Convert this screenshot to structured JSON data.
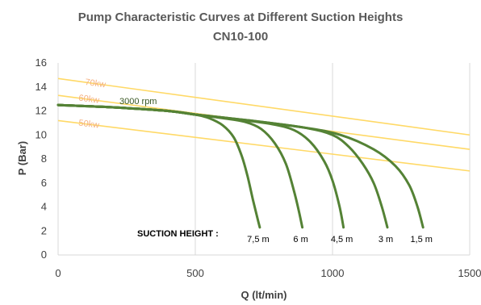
{
  "chart_data": {
    "type": "line",
    "title": "Pump Characteristic Curves at Different Suction Heights",
    "subtitle": "CN10-100",
    "xlabel": "Q (lt/min)",
    "ylabel": "P (Bar)",
    "xlim": [
      0,
      1500
    ],
    "ylim": [
      0,
      16
    ],
    "xticks": [
      0,
      500,
      1000,
      1500
    ],
    "yticks": [
      0,
      2,
      4,
      6,
      8,
      10,
      12,
      14,
      16
    ],
    "grid": "vertical",
    "colors": {
      "pump": "#548235",
      "power": "#FFD966",
      "grid": "#D9D9D9",
      "text": "#404040"
    },
    "speed_label": "3000 rpm",
    "suction_label": "SUCTION HEIGHT :",
    "power_lines": [
      {
        "name": "70kw",
        "x": [
          0,
          1500
        ],
        "y": [
          14.7,
          10.0
        ]
      },
      {
        "name": "60kw",
        "x": [
          0,
          1500
        ],
        "y": [
          13.3,
          8.8
        ]
      },
      {
        "name": "50kw",
        "x": [
          0,
          1500
        ],
        "y": [
          11.2,
          7.0
        ]
      }
    ],
    "series": [
      {
        "name": "7,5 m",
        "x": [
          0,
          200,
          400,
          500,
          550,
          600,
          640,
          670,
          690,
          710,
          725,
          735
        ],
        "y": [
          12.5,
          12.3,
          12.0,
          11.7,
          11.4,
          10.8,
          9.8,
          8.2,
          6.6,
          4.6,
          3.2,
          2.3
        ]
      },
      {
        "name": "6 m",
        "x": [
          0,
          200,
          400,
          500,
          600,
          680,
          740,
          790,
          830,
          860,
          878,
          890
        ],
        "y": [
          12.5,
          12.3,
          12.0,
          11.7,
          11.4,
          11.1,
          10.5,
          9.3,
          7.6,
          5.3,
          3.6,
          2.3
        ]
      },
      {
        "name": "4,5 m",
        "x": [
          0,
          200,
          400,
          500,
          650,
          780,
          860,
          920,
          970,
          1000,
          1025,
          1040
        ],
        "y": [
          12.5,
          12.3,
          12.0,
          11.7,
          11.3,
          10.9,
          10.4,
          9.4,
          7.8,
          6.2,
          4.1,
          2.3
        ]
      },
      {
        "name": "3 m",
        "x": [
          0,
          200,
          400,
          500,
          700,
          900,
          1000,
          1060,
          1110,
          1150,
          1180,
          1200
        ],
        "y": [
          12.5,
          12.3,
          12.0,
          11.7,
          11.2,
          10.6,
          10.0,
          9.0,
          7.6,
          6.0,
          4.0,
          2.3
        ]
      },
      {
        "name": "1,5 m",
        "x": [
          0,
          200,
          400,
          500,
          700,
          900,
          1030,
          1150,
          1230,
          1280,
          1310,
          1330
        ],
        "y": [
          12.5,
          12.3,
          12.0,
          11.7,
          11.2,
          10.6,
          10.0,
          8.8,
          7.4,
          5.8,
          4.0,
          2.3
        ]
      }
    ]
  }
}
